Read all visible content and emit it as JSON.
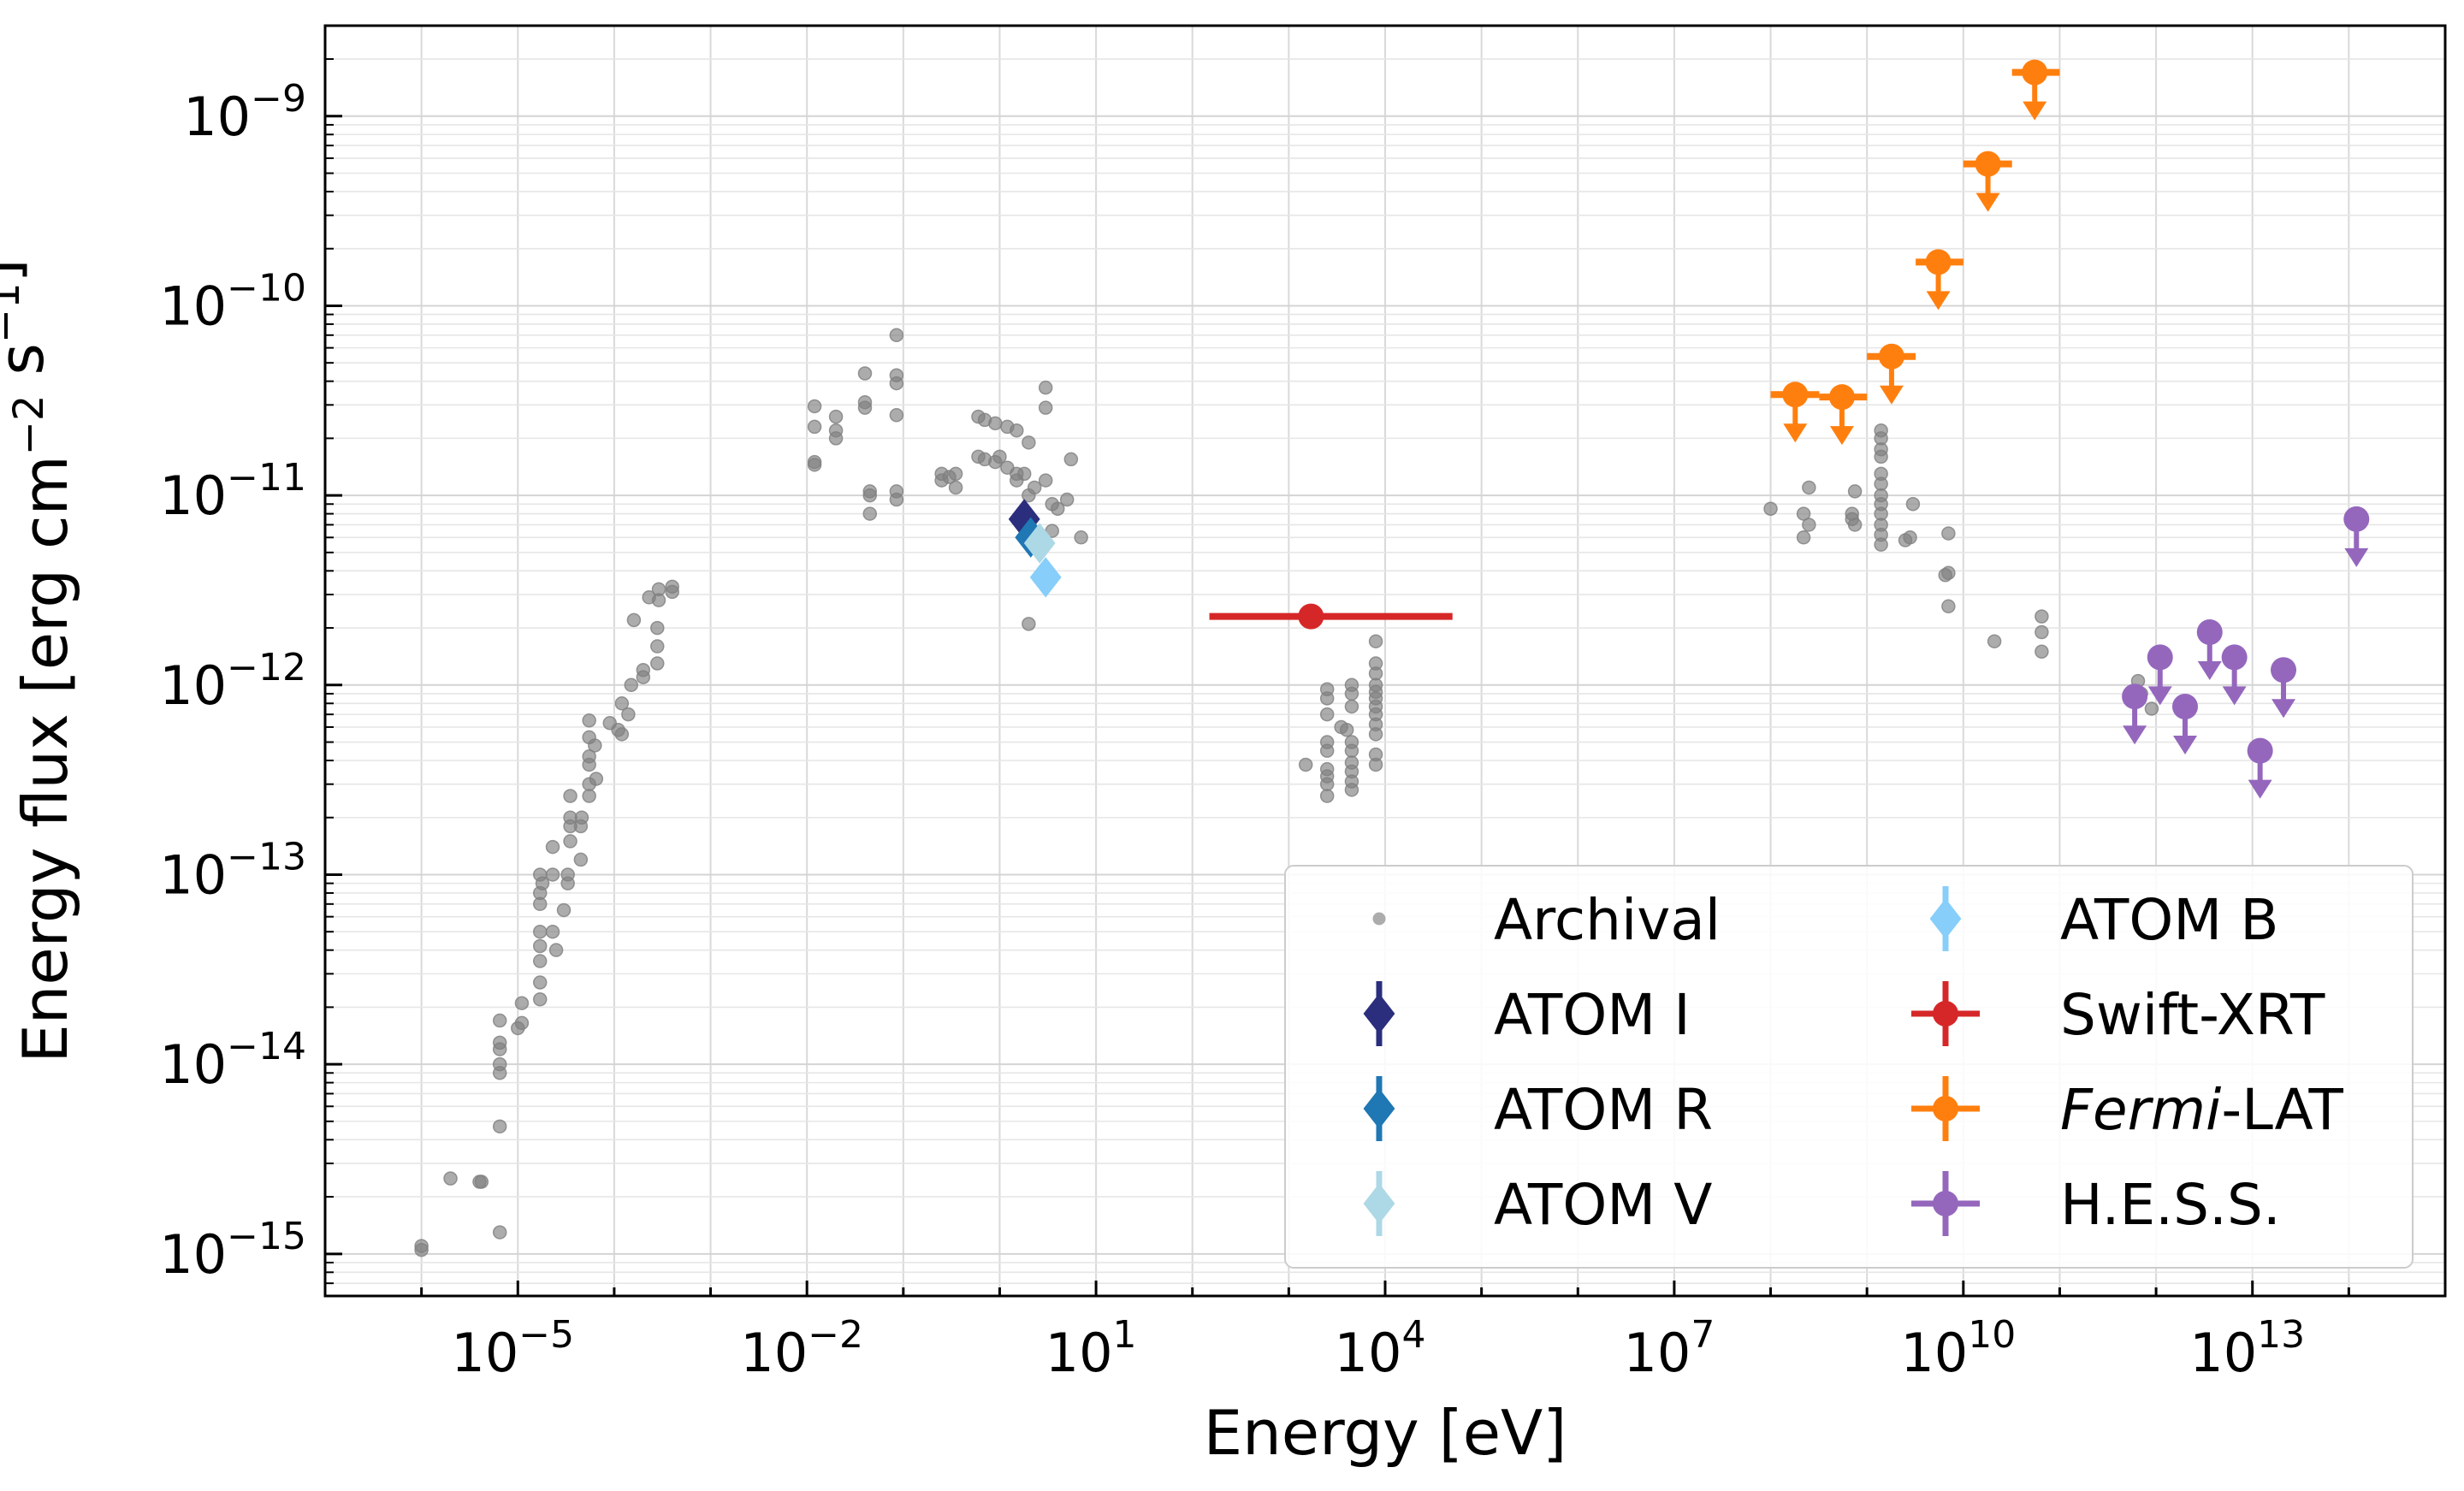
{
  "chart_data": {
    "type": "scatter",
    "xlabel": "Energy [eV]",
    "ylabel": "Energy flux [erg cm$^{-2}$ s$^{-1}$]",
    "xscale": "log",
    "yscale": "log",
    "xlim": [
      1e-07,
      1000000000000000.0
    ],
    "ylim": [
      6e-16,
      3e-09
    ],
    "grid": true,
    "legend_placement": "lower-right",
    "legend_columns": 2,
    "x_ticks": [
      {
        "value": 1e-05,
        "label": "10",
        "exp": "−5"
      },
      {
        "value": 0.01,
        "label": "10",
        "exp": "−2"
      },
      {
        "value": 10.0,
        "label": "10",
        "exp": "1"
      },
      {
        "value": 10000.0,
        "label": "10",
        "exp": "4"
      },
      {
        "value": 10000000.0,
        "label": "10",
        "exp": "7"
      },
      {
        "value": 10000000000.0,
        "label": "10",
        "exp": "10"
      },
      {
        "value": 10000000000000.0,
        "label": "10",
        "exp": "13"
      }
    ],
    "y_ticks": [
      {
        "value": 1e-15,
        "label": "10",
        "exp": "−15"
      },
      {
        "value": 1e-14,
        "label": "10",
        "exp": "−14"
      },
      {
        "value": 1e-13,
        "label": "10",
        "exp": "−13"
      },
      {
        "value": 1e-12,
        "label": "10",
        "exp": "−12"
      },
      {
        "value": 1e-11,
        "label": "10",
        "exp": "−11"
      },
      {
        "value": 1e-10,
        "label": "10",
        "exp": "−10"
      },
      {
        "value": 1e-09,
        "label": "10",
        "exp": "−9"
      }
    ],
    "series": [
      {
        "name": "Archival",
        "color": "#808080",
        "marker": "circle-small",
        "points": [
          [
            1e-06,
            1.1e-15
          ],
          [
            1e-06,
            1.05e-15
          ],
          [
            2e-06,
            2.5e-15
          ],
          [
            4e-06,
            2.4e-15
          ],
          [
            4.2e-06,
            2.4e-15
          ],
          [
            6.5e-06,
            1.3e-15
          ],
          [
            6.5e-06,
            4.7e-15
          ],
          [
            6.5e-06,
            9e-15
          ],
          [
            6.5e-06,
            1e-14
          ],
          [
            6.5e-06,
            1.2e-14
          ],
          [
            6.5e-06,
            1.3e-14
          ],
          [
            6.5e-06,
            1.7e-14
          ],
          [
            1e-05,
            1.55e-14
          ],
          [
            1.1e-05,
            1.65e-14
          ],
          [
            1.1e-05,
            2.1e-14
          ],
          [
            1.7e-05,
            2.2e-14
          ],
          [
            1.7e-05,
            2.7e-14
          ],
          [
            1.7e-05,
            3.5e-14
          ],
          [
            1.7e-05,
            4.2e-14
          ],
          [
            1.7e-05,
            5e-14
          ],
          [
            1.7e-05,
            7e-14
          ],
          [
            1.7e-05,
            8e-14
          ],
          [
            1.7e-05,
            1e-13
          ],
          [
            1.8e-05,
            9e-14
          ],
          [
            2.3e-05,
            1.4e-13
          ],
          [
            2.3e-05,
            1e-13
          ],
          [
            2.3e-05,
            5e-14
          ],
          [
            2.5e-05,
            4e-14
          ],
          [
            3e-05,
            6.5e-14
          ],
          [
            3.3e-05,
            9e-14
          ],
          [
            3.3e-05,
            1e-13
          ],
          [
            3.5e-05,
            1.5e-13
          ],
          [
            3.5e-05,
            1.8e-13
          ],
          [
            3.5e-05,
            2e-13
          ],
          [
            3.5e-05,
            2.6e-13
          ],
          [
            4.5e-05,
            1.2e-13
          ],
          [
            4.5e-05,
            1.8e-13
          ],
          [
            4.6e-05,
            2e-13
          ],
          [
            5.5e-05,
            3e-13
          ],
          [
            5.5e-05,
            3.8e-13
          ],
          [
            5.5e-05,
            4.2e-13
          ],
          [
            5.5e-05,
            2.6e-13
          ],
          [
            5.5e-05,
            5.3e-13
          ],
          [
            5.5e-05,
            6.5e-13
          ],
          [
            6.3e-05,
            4.8e-13
          ],
          [
            6.5e-05,
            3.2e-13
          ],
          [
            9e-05,
            6.3e-13
          ],
          [
            0.00011,
            5.8e-13
          ],
          [
            0.00012,
            5.5e-13
          ],
          [
            0.00012,
            8e-13
          ],
          [
            0.00014,
            7e-13
          ],
          [
            0.00015,
            1e-12
          ],
          [
            0.00016,
            2.2e-12
          ],
          [
            0.0002,
            1.1e-12
          ],
          [
            0.0002,
            1.2e-12
          ],
          [
            0.00023,
            2.9e-12
          ],
          [
            0.00028,
            1.3e-12
          ],
          [
            0.00028,
            1.6e-12
          ],
          [
            0.00028,
            2e-12
          ],
          [
            0.00029,
            3.2e-12
          ],
          [
            0.00029,
            2.8e-12
          ],
          [
            0.0004,
            3.1e-12
          ],
          [
            0.0004,
            3.3e-12
          ],
          [
            0.012,
            1.45e-11
          ],
          [
            0.012,
            1.5e-11
          ],
          [
            0.012,
            2.3e-11
          ],
          [
            0.012,
            2.95e-11
          ],
          [
            0.02,
            2e-11
          ],
          [
            0.02,
            2.2e-11
          ],
          [
            0.02,
            2.6e-11
          ],
          [
            0.04,
            2.9e-11
          ],
          [
            0.04,
            3.1e-11
          ],
          [
            0.04,
            4.4e-11
          ],
          [
            0.045,
            1.05e-11
          ],
          [
            0.045,
            8e-12
          ],
          [
            0.045,
            1e-11
          ],
          [
            0.085,
            3.9e-11
          ],
          [
            0.085,
            4.3e-11
          ],
          [
            0.085,
            7e-11
          ],
          [
            0.085,
            2.65e-11
          ],
          [
            0.085,
            1.05e-11
          ],
          [
            0.085,
            9.5e-12
          ],
          [
            0.25,
            1.3e-11
          ],
          [
            0.25,
            1.2e-11
          ],
          [
            0.3,
            1.25e-11
          ],
          [
            0.35,
            1.3e-11
          ],
          [
            0.35,
            1.1e-11
          ],
          [
            0.6,
            2.6e-11
          ],
          [
            0.7,
            2.5e-11
          ],
          [
            0.9,
            2.4e-11
          ],
          [
            0.6,
            1.6e-11
          ],
          [
            0.7,
            1.55e-11
          ],
          [
            0.9,
            1.5e-11
          ],
          [
            1.0,
            1.6e-11
          ],
          [
            1.2,
            2.3e-11
          ],
          [
            1.2,
            1.4e-11
          ],
          [
            1.5,
            2.2e-11
          ],
          [
            1.5,
            1.3e-11
          ],
          [
            1.5,
            1.2e-11
          ],
          [
            1.8,
            1.3e-11
          ],
          [
            2.0,
            1.9e-11
          ],
          [
            2.0,
            1e-11
          ],
          [
            2.3,
            1.1e-11
          ],
          [
            2.0,
            2.1e-12
          ],
          [
            3.0,
            3.7e-11
          ],
          [
            3.0,
            2.9e-11
          ],
          [
            3.0,
            1.2e-11
          ],
          [
            3.5,
            9e-12
          ],
          [
            4.0,
            8.5e-12
          ],
          [
            5.0,
            9.5e-12
          ],
          [
            5.5,
            1.55e-11
          ],
          [
            7.0,
            6e-12
          ],
          [
            3.5,
            6.5e-12
          ],
          [
            1500.0,
            3.8e-13
          ],
          [
            2500.0,
            2.6e-13
          ],
          [
            2500.0,
            3e-13
          ],
          [
            2500.0,
            3.3e-13
          ],
          [
            2500.0,
            3.6e-13
          ],
          [
            2500.0,
            4.5e-13
          ],
          [
            2500.0,
            5e-13
          ],
          [
            2500.0,
            7e-13
          ],
          [
            2500.0,
            8.5e-13
          ],
          [
            2500.0,
            9.5e-13
          ],
          [
            3500.0,
            6e-13
          ],
          [
            4000.0,
            5.8e-13
          ],
          [
            4500.0,
            2.8e-13
          ],
          [
            4500.0,
            3.1e-13
          ],
          [
            4500.0,
            3.5e-13
          ],
          [
            4500.0,
            3.9e-13
          ],
          [
            4500.0,
            4.5e-13
          ],
          [
            4500.0,
            5e-13
          ],
          [
            4500.0,
            7.7e-13
          ],
          [
            4500.0,
            9e-13
          ],
          [
            4500.0,
            1e-12
          ],
          [
            8000.0,
            3.8e-13
          ],
          [
            8000.0,
            4.3e-13
          ],
          [
            8000.0,
            5.5e-13
          ],
          [
            8000.0,
            6.2e-13
          ],
          [
            8000.0,
            7e-13
          ],
          [
            8000.0,
            7.7e-13
          ],
          [
            8000.0,
            8.5e-13
          ],
          [
            8000.0,
            9.2e-13
          ],
          [
            8000.0,
            1e-12
          ],
          [
            8000.0,
            1.15e-12
          ],
          [
            8000.0,
            1.3e-12
          ],
          [
            8000.0,
            1.7e-12
          ],
          [
            100000000.0,
            8.5e-12
          ],
          [
            220000000.0,
            8e-12
          ],
          [
            220000000.0,
            6e-12
          ],
          [
            250000000.0,
            1.1e-11
          ],
          [
            250000000.0,
            7e-12
          ],
          [
            700000000.0,
            7.5e-12
          ],
          [
            700000000.0,
            8e-12
          ],
          [
            750000000.0,
            1.05e-11
          ],
          [
            750000000.0,
            7e-12
          ],
          [
            1400000000.0,
            5.5e-12
          ],
          [
            1400000000.0,
            6.2e-12
          ],
          [
            1400000000.0,
            7e-12
          ],
          [
            1400000000.0,
            8e-12
          ],
          [
            1400000000.0,
            9e-12
          ],
          [
            1400000000.0,
            1e-11
          ],
          [
            1400000000.0,
            1.15e-11
          ],
          [
            1400000000.0,
            1.3e-11
          ],
          [
            1400000000.0,
            1.6e-11
          ],
          [
            1400000000.0,
            1.75e-11
          ],
          [
            1400000000.0,
            2e-11
          ],
          [
            1400000000.0,
            2.2e-11
          ],
          [
            2500000000.0,
            5.8e-12
          ],
          [
            2800000000.0,
            6e-12
          ],
          [
            3000000000.0,
            9e-12
          ],
          [
            6500000000.0,
            3.8e-12
          ],
          [
            7000000000.0,
            6.3e-12
          ],
          [
            7000000000.0,
            3.9e-12
          ],
          [
            7000000000.0,
            2.6e-12
          ],
          [
            21000000000.0,
            1.7e-12
          ],
          [
            65000000000.0,
            2.3e-12
          ],
          [
            65000000000.0,
            1.9e-12
          ],
          [
            65000000000.0,
            1.5e-12
          ],
          [
            650000000000.0,
            1.05e-12
          ],
          [
            700000000000.0,
            9e-13
          ],
          [
            900000000000.0,
            7.5e-13
          ]
        ]
      },
      {
        "name": "ATOM I",
        "color": "#2a2e7c",
        "marker": "diamond",
        "points": [
          [
            1.8,
            7.5e-12
          ]
        ]
      },
      {
        "name": "ATOM R",
        "color": "#1f77b4",
        "marker": "diamond",
        "points": [
          [
            2.1,
            6e-12
          ]
        ]
      },
      {
        "name": "ATOM V",
        "color": "#add8e6",
        "marker": "diamond",
        "points": [
          [
            2.6,
            5.6e-12
          ]
        ]
      },
      {
        "name": "ATOM B",
        "color": "#87cefa",
        "marker": "diamond",
        "points": [
          [
            3.0,
            3.7e-12
          ]
        ]
      },
      {
        "name": "Swift-XRT",
        "color": "#d62728",
        "marker": "circle",
        "points": [
          [
            1700.0,
            2.3e-12,
            150.0,
            50000.0
          ]
        ]
      },
      {
        "name": "Fermi-LAT",
        "name_italic": "Fermi",
        "name_rest": "-LAT",
        "color": "#ff7f0e",
        "marker": "circle",
        "upper_limit": true,
        "points": [
          [
            180000000.0,
            3.4e-11,
            100000000.0,
            320000000.0
          ],
          [
            550000000.0,
            3.3e-11,
            320000000.0,
            1000000000.0
          ],
          [
            1800000000.0,
            5.4e-11,
            1000000000.0,
            3200000000.0
          ],
          [
            5500000000.0,
            1.7e-10,
            3200000000.0,
            10000000000.0
          ],
          [
            18000000000.0,
            5.6e-10,
            10000000000.0,
            32000000000.0
          ],
          [
            55000000000.0,
            1.7e-09,
            32000000000.0,
            100000000000.0
          ]
        ]
      },
      {
        "name": "H.E.S.S.",
        "color": "#9467bd",
        "marker": "circle",
        "upper_limit": true,
        "points": [
          [
            600000000000.0,
            8.7e-13
          ],
          [
            1100000000000.0,
            1.4e-12
          ],
          [
            2000000000000.0,
            7.7e-13
          ],
          [
            3600000000000.0,
            1.9e-12
          ],
          [
            6500000000000.0,
            1.4e-12
          ],
          [
            12000000000000.0,
            4.5e-13
          ],
          [
            21000000000000.0,
            1.2e-12
          ],
          [
            120000000000000.0,
            7.5e-12
          ]
        ]
      }
    ]
  }
}
